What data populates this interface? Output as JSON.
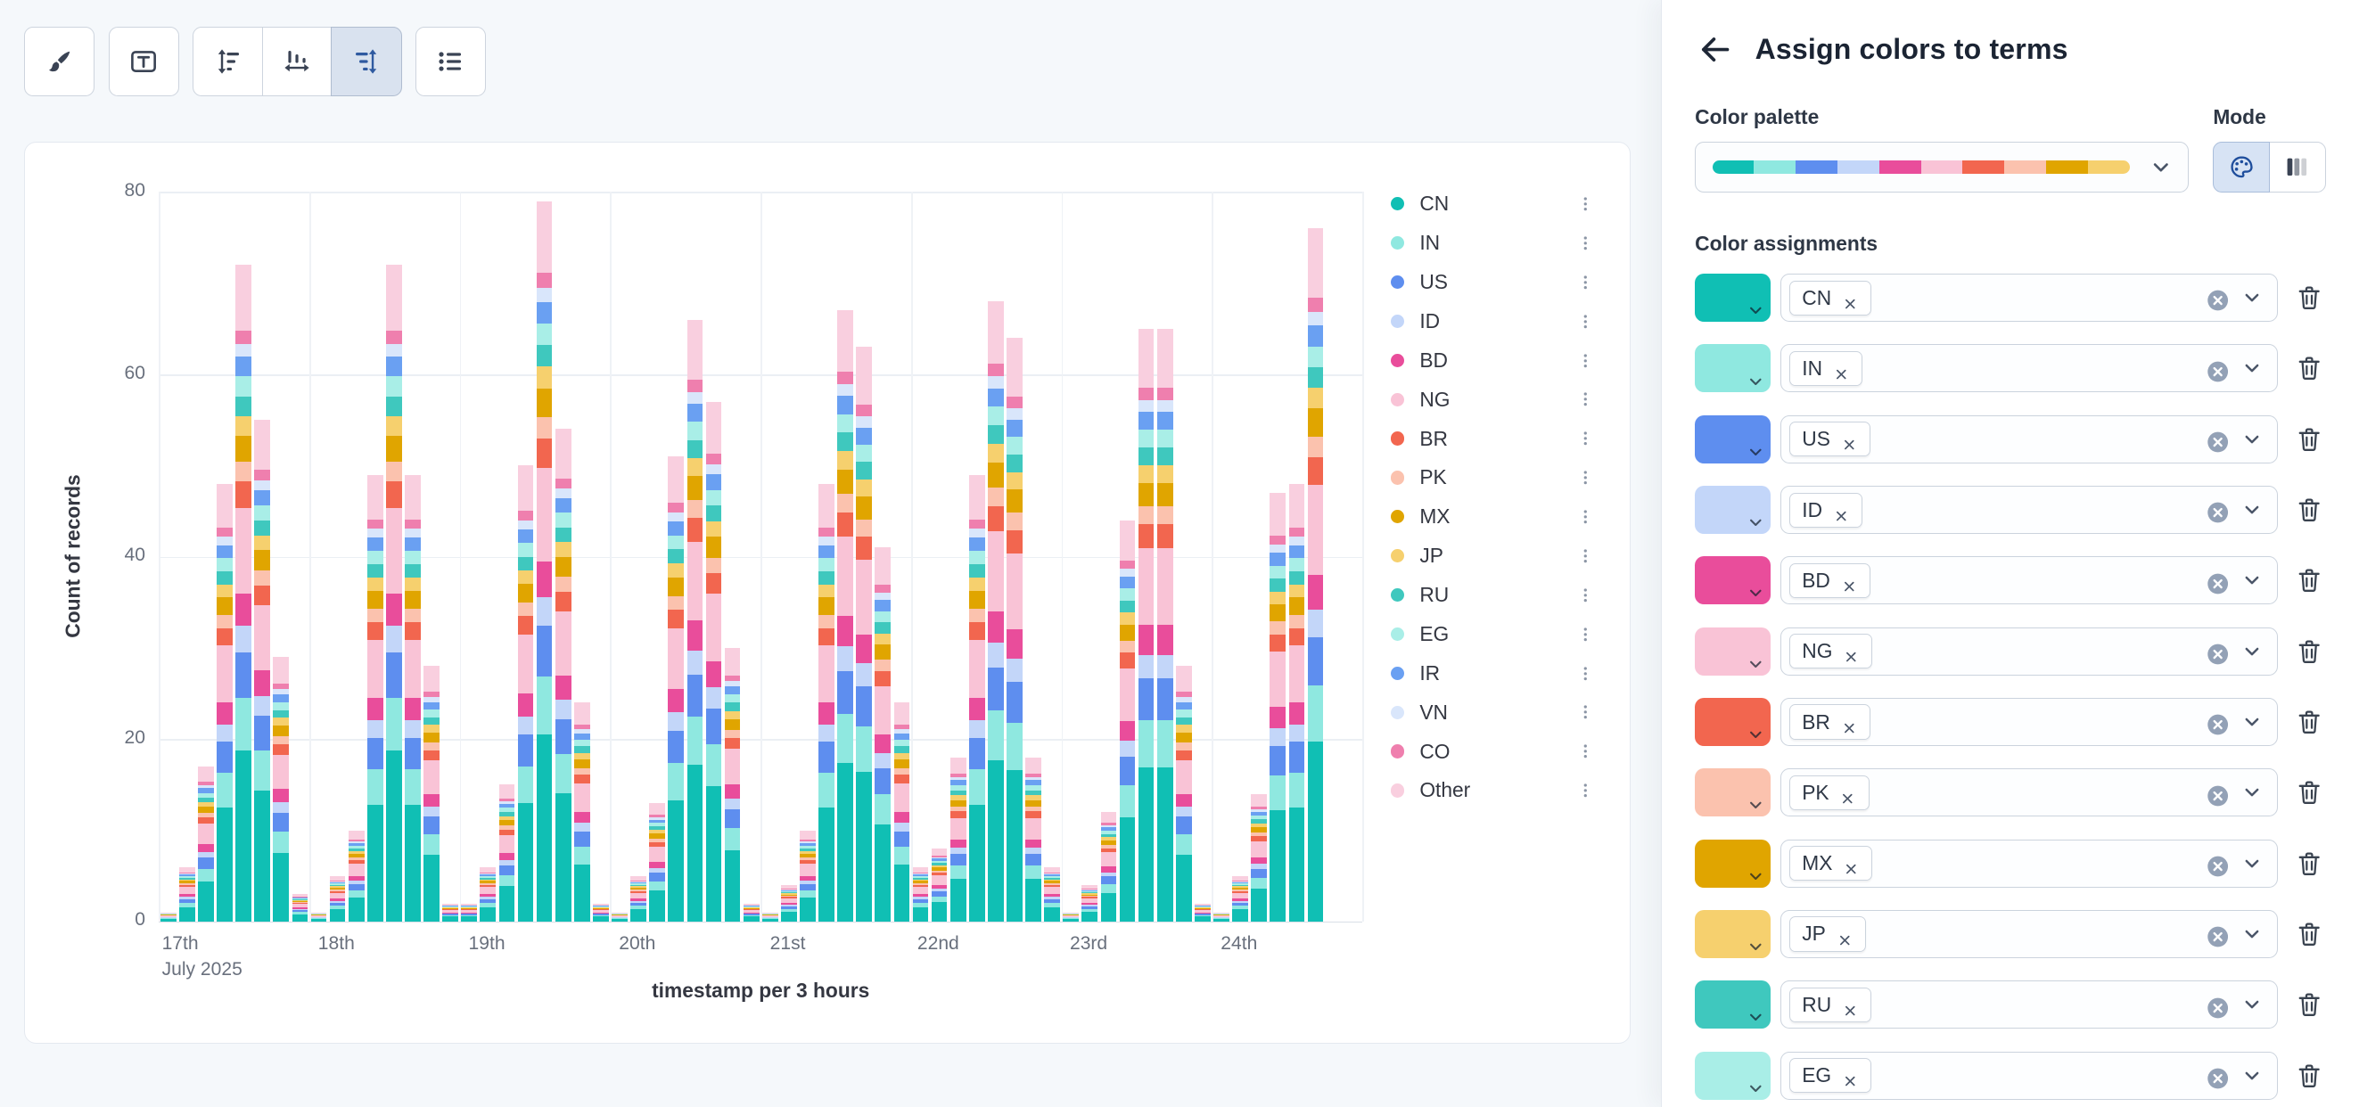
{
  "toolbar": {
    "buttons": [
      {
        "name": "visual-options",
        "icon": "brush-icon",
        "group": 1,
        "selected": false
      },
      {
        "name": "text-labels",
        "icon": "text-icon",
        "group": 2,
        "selected": false
      },
      {
        "name": "left-axis",
        "icon": "axis-left-icon",
        "group": 3,
        "selected": false
      },
      {
        "name": "bottom-axis",
        "icon": "axis-bottom-icon",
        "group": 3,
        "selected": false
      },
      {
        "name": "right-axis",
        "icon": "axis-right-icon",
        "group": 3,
        "selected": true
      },
      {
        "name": "legend",
        "icon": "legend-icon",
        "group": 4,
        "selected": false
      }
    ]
  },
  "panel": {
    "back_icon": "arrow-left-icon",
    "title": "Assign colors to terms",
    "palette_label": "Color palette",
    "mode_label": "Mode",
    "assignments_label": "Color assignments",
    "palette_colors": [
      "#10BFB4",
      "#8FE8E0",
      "#5E8EEF",
      "#C3D6F9",
      "#E94D9B",
      "#F9C3D6",
      "#F2664F",
      "#FBC2AE",
      "#E0A500",
      "#F6D06E"
    ],
    "mode_options": [
      {
        "name": "palette-mode",
        "icon": "palette-icon",
        "selected": true
      },
      {
        "name": "gradient-mode",
        "icon": "gradient-icon",
        "selected": false
      }
    ],
    "assignments": [
      {
        "term": "CN",
        "color": "#10BFB4"
      },
      {
        "term": "IN",
        "color": "#8FE8E0"
      },
      {
        "term": "US",
        "color": "#5E8EEF"
      },
      {
        "term": "ID",
        "color": "#C3D6F9"
      },
      {
        "term": "BD",
        "color": "#E94D9B"
      },
      {
        "term": "NG",
        "color": "#F9C3D6"
      },
      {
        "term": "BR",
        "color": "#F2664F"
      },
      {
        "term": "PK",
        "color": "#FBC2AE"
      },
      {
        "term": "MX",
        "color": "#E0A500"
      },
      {
        "term": "JP",
        "color": "#F6D06E"
      },
      {
        "term": "RU",
        "color": "#3FC8BE"
      },
      {
        "term": "EG",
        "color": "#A9EEE7"
      }
    ]
  },
  "chart_data": {
    "type": "bar",
    "stacked": true,
    "title": "",
    "xlabel": "timestamp per 3 hours",
    "ylabel": "Count of records",
    "ylim": [
      0,
      80
    ],
    "yticks": [
      0,
      20,
      40,
      60,
      80
    ],
    "grid": true,
    "legend_position": "right",
    "x_day_labels": [
      "17th",
      "18th",
      "19th",
      "20th",
      "21st",
      "22nd",
      "23rd",
      "24th"
    ],
    "x_first_label_sub": "July 2025",
    "buckets_per_day": 8,
    "bucket_hours": 3,
    "bucket_totals": [
      1,
      6,
      17,
      48,
      72,
      55,
      29,
      3,
      1,
      5,
      10,
      49,
      72,
      49,
      28,
      2,
      2,
      6,
      15,
      50,
      79,
      54,
      24,
      2,
      1,
      5,
      13,
      51,
      66,
      57,
      30,
      2,
      1,
      4,
      10,
      48,
      67,
      63,
      41,
      24,
      6,
      8,
      18,
      49,
      68,
      64,
      18,
      6,
      1,
      4,
      12,
      44,
      65,
      65,
      28,
      2,
      1,
      5,
      14,
      47,
      48,
      76,
      0,
      0
    ],
    "series": [
      {
        "name": "CN",
        "color": "#10BFB4",
        "fraction": 0.26
      },
      {
        "name": "IN",
        "color": "#8FE8E0",
        "fraction": 0.08
      },
      {
        "name": "US",
        "color": "#5E8EEF",
        "fraction": 0.07
      },
      {
        "name": "ID",
        "color": "#C3D6F9",
        "fraction": 0.04
      },
      {
        "name": "BD",
        "color": "#E94D9B",
        "fraction": 0.05
      },
      {
        "name": "NG",
        "color": "#F9C3D6",
        "fraction": 0.13
      },
      {
        "name": "BR",
        "color": "#F2664F",
        "fraction": 0.04
      },
      {
        "name": "PK",
        "color": "#FBC2AE",
        "fraction": 0.03
      },
      {
        "name": "MX",
        "color": "#E0A500",
        "fraction": 0.04
      },
      {
        "name": "JP",
        "color": "#F6D06E",
        "fraction": 0.03
      },
      {
        "name": "RU",
        "color": "#3FC8BE",
        "fraction": 0.03
      },
      {
        "name": "EG",
        "color": "#A9EEE7",
        "fraction": 0.03
      },
      {
        "name": "IR",
        "color": "#6AA0F2",
        "fraction": 0.03
      },
      {
        "name": "VN",
        "color": "#D9E6FB",
        "fraction": 0.02
      },
      {
        "name": "CO",
        "color": "#EF7FAE",
        "fraction": 0.02
      },
      {
        "name": "Other",
        "color": "#F9CFDF",
        "fraction": 0.1
      }
    ],
    "legend_more_icon": "kebab-icon"
  }
}
